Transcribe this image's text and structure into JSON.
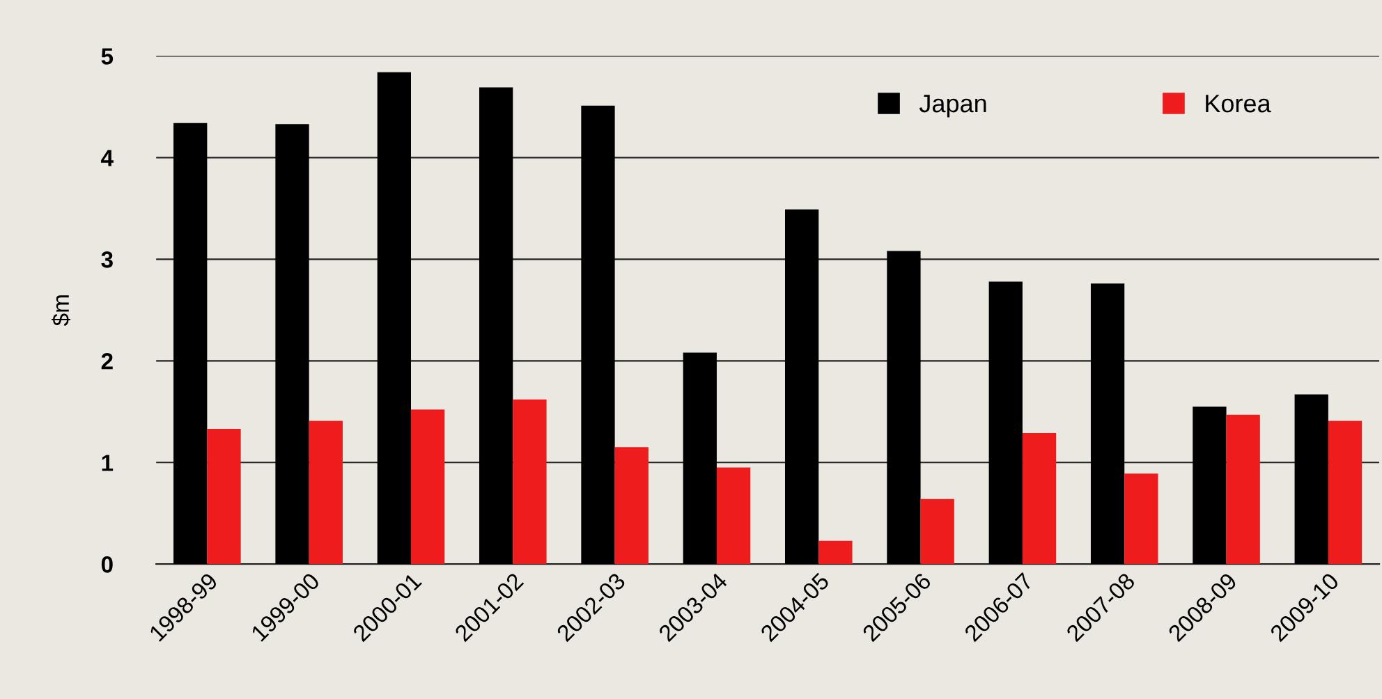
{
  "chart_data": {
    "type": "bar",
    "ylabel": "$m",
    "categories": [
      "1998-99",
      "1999-00",
      "2000-01",
      "2001-02",
      "2002-03",
      "2003-04",
      "2004-05",
      "2005-06",
      "2006-07",
      "2007-08",
      "2008-09",
      "2009-10"
    ],
    "series": [
      {
        "name": "Japan",
        "color": "#000000",
        "values": [
          4.34,
          4.33,
          4.84,
          4.69,
          4.51,
          2.08,
          3.49,
          3.08,
          2.78,
          2.76,
          1.55,
          1.67
        ]
      },
      {
        "name": "Korea",
        "color": "#ee1c1c",
        "values": [
          1.33,
          1.41,
          1.52,
          1.62,
          1.15,
          0.95,
          0.23,
          0.64,
          1.29,
          0.89,
          1.47,
          1.41
        ]
      }
    ],
    "ylim": [
      0,
      5
    ],
    "yticks": [
      0,
      1,
      2,
      3,
      4,
      5
    ],
    "grid": "y",
    "legend": "top right"
  }
}
